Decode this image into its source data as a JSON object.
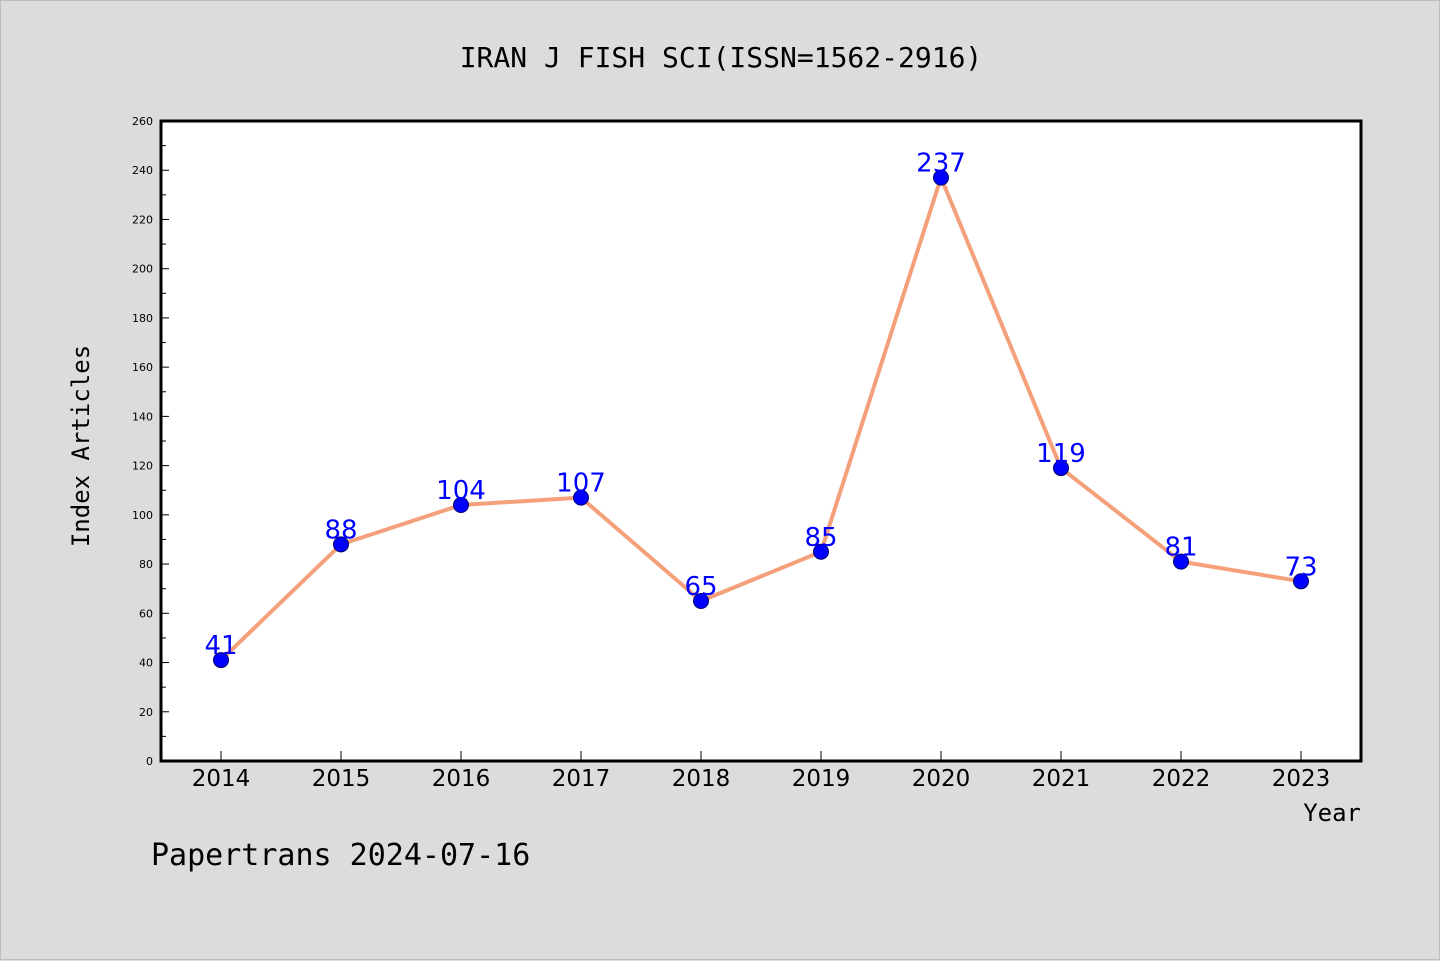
{
  "chart_data": {
    "type": "line",
    "title": "IRAN J FISH SCI(ISSN=1562-2916)",
    "xlabel": "Year",
    "ylabel": "Index Articles",
    "categories": [
      "2014",
      "2015",
      "2016",
      "2017",
      "2018",
      "2019",
      "2020",
      "2021",
      "2022",
      "2023"
    ],
    "series": [
      {
        "values": [
          41,
          88,
          104,
          107,
          65,
          85,
          237,
          119,
          81,
          73
        ]
      }
    ],
    "ylim": [
      0,
      260
    ],
    "yticks": [
      0,
      20,
      40,
      60,
      80,
      100,
      120,
      140,
      160,
      180,
      200,
      220,
      240,
      260
    ],
    "grid": false,
    "data_labels": true,
    "line_color": "#f4a07a",
    "marker_color": "#0000ff",
    "label_color": "#0000ff"
  },
  "footer": "Papertrans 2024-07-16"
}
